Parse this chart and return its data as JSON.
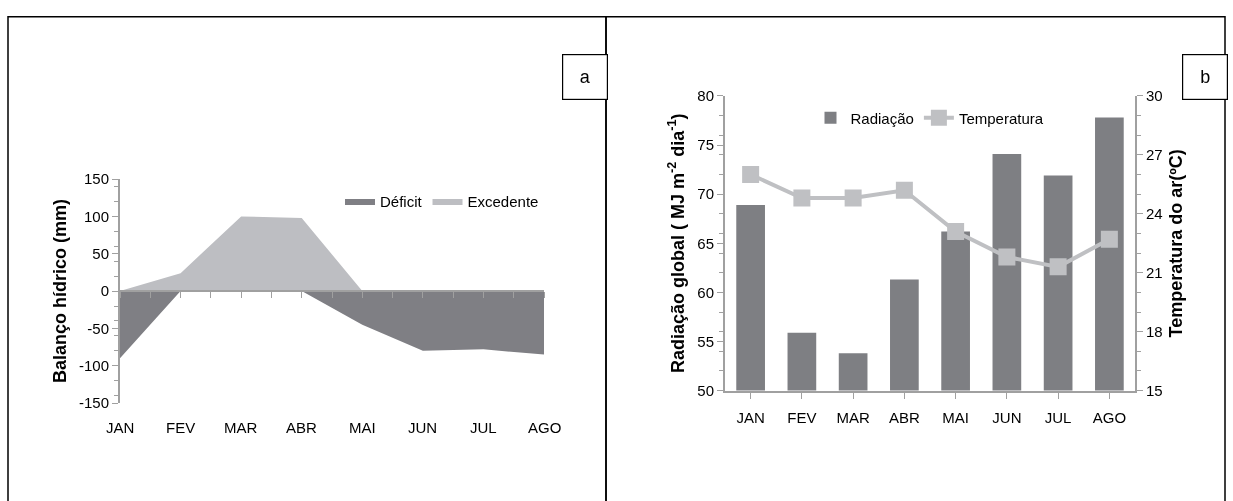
{
  "chart_data": [
    {
      "type": "area",
      "categories": [
        "JAN",
        "FEV",
        "MAR",
        "ABR",
        "MAI",
        "JUN",
        "JUL",
        "AGO"
      ],
      "ylabel": "Balanço hídrico (mm)",
      "ylim": [
        -150,
        150
      ],
      "yticks": [
        -150,
        -100,
        -50,
        0,
        50,
        100,
        150
      ],
      "legend": "top right",
      "annotations": [
        "a"
      ],
      "series": [
        {
          "name": "Déficit",
          "color": "#7f7f84",
          "values": [
            -90,
            0,
            0,
            0,
            -45,
            -80,
            -78,
            -85
          ]
        },
        {
          "name": "Excedente",
          "color": "#bdbec2",
          "values": [
            0,
            24,
            100,
            98,
            0,
            0,
            0,
            0
          ]
        }
      ]
    },
    {
      "type": "bar",
      "categories": [
        "JAN",
        "FEV",
        "MAR",
        "ABR",
        "MAI",
        "JUN",
        "JUL",
        "AGO"
      ],
      "ylabel": "Radiação global ( MJ m$^{-2}$ dia$^{-1}$)",
      "y2label": "Temperatura do ar(ºC)",
      "ylim": [
        50,
        80
      ],
      "yticks": [
        50,
        55,
        60,
        65,
        70,
        75,
        80
      ],
      "y2lim": [
        15,
        30
      ],
      "y2ticks": [
        15,
        18,
        21,
        24,
        27,
        30
      ],
      "legend": "top",
      "annotations": [
        "b"
      ],
      "series": [
        {
          "name": "Radiação",
          "type": "bar",
          "color": "#7e7f83",
          "values": [
            68.9,
            55.9,
            53.8,
            61.3,
            66.2,
            74.1,
            71.9,
            77.8
          ]
        },
        {
          "name": "Temperatura",
          "type": "line",
          "axis": "y2",
          "marker": "square",
          "color": "#bfc0c3",
          "values": [
            26.0,
            24.8,
            24.8,
            25.2,
            23.1,
            21.8,
            21.3,
            22.7
          ]
        }
      ]
    }
  ]
}
